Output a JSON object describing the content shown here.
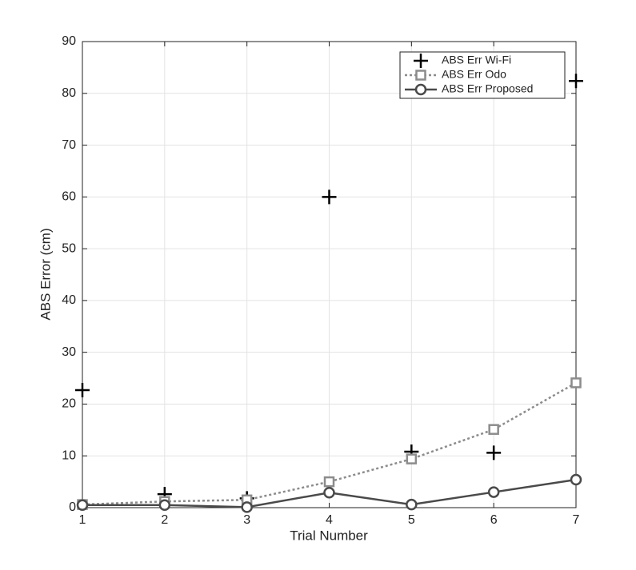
{
  "chart_data": {
    "type": "line",
    "x_label": "Trial Number",
    "y_label": "ABS Error (cm)",
    "x": [
      1,
      2,
      3,
      4,
      5,
      6,
      7
    ],
    "series": [
      {
        "name": "ABS Err Wi-Fi",
        "color": "#000000",
        "marker": "plus",
        "line": "none",
        "values": [
          22.7,
          2.6,
          1.8,
          60,
          10.8,
          10.6,
          82.4
        ]
      },
      {
        "name": "ABS Err Odo",
        "color": "#8c8c8c",
        "marker": "square",
        "line": "dotted",
        "values": [
          0.6,
          1.2,
          1.5,
          5.0,
          9.4,
          15.1,
          24.1
        ]
      },
      {
        "name": "ABS Err Proposed",
        "color": "#4a4a4a",
        "marker": "circle",
        "line": "solid",
        "values": [
          0.5,
          0.5,
          0.1,
          2.9,
          0.6,
          3.0,
          5.4
        ]
      }
    ],
    "xlim": [
      1,
      7
    ],
    "xticks": [
      1,
      2,
      3,
      4,
      5,
      6,
      7
    ],
    "ylim": [
      0,
      90
    ],
    "yticks": [
      0,
      10,
      20,
      30,
      40,
      50,
      60,
      70,
      80,
      90
    ],
    "grid": true,
    "legend": "top-right"
  }
}
